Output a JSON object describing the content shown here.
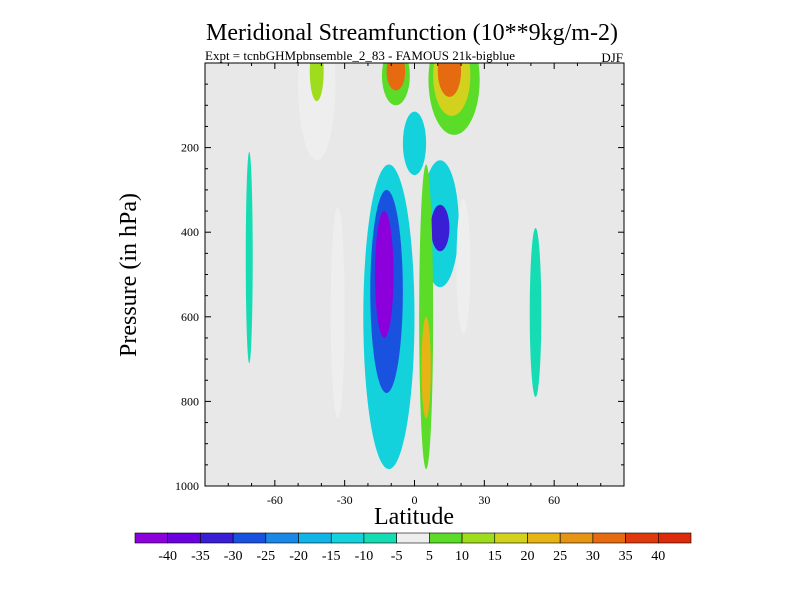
{
  "chart_data": {
    "type": "heatmap",
    "title": "Meridional Streamfunction (10**9kg/m-2)",
    "subtitle": "Expt = tcnbGHMpbnsemble_2_83 - FAMOUS 21k-bigblue",
    "season": "DJF",
    "xlabel": "Latitude",
    "ylabel": "Pressure (in hPa)",
    "xlim": [
      -90,
      90
    ],
    "ylim": [
      0,
      1000
    ],
    "y_inverted": true,
    "x_ticks": [
      -60,
      -30,
      0,
      30,
      60
    ],
    "x_tick_labels": [
      "-60",
      "-30",
      "0",
      "30",
      "60"
    ],
    "y_ticks": [
      200,
      400,
      600,
      800,
      1000
    ],
    "y_tick_labels": [
      "200",
      "400",
      "600",
      "800",
      "1000"
    ],
    "background_color": "#e8e8e8",
    "colorbar": {
      "labels": [
        "-40",
        "-35",
        "-30",
        "-25",
        "-20",
        "-15",
        "-10",
        "-5",
        "5",
        "10",
        "15",
        "20",
        "25",
        "30",
        "35",
        "40"
      ],
      "colors": [
        "#8c00dc",
        "#6a00e0",
        "#3a1ed6",
        "#1a52e0",
        "#1a88e6",
        "#10b4e6",
        "#14d2dc",
        "#16dcb4",
        "#eeeeee",
        "#5adc28",
        "#a0dc1e",
        "#d2d21e",
        "#e6b414",
        "#e69414",
        "#e66a10",
        "#e03a0c",
        "#dc2a0a"
      ]
    },
    "cells": [
      {
        "name": "nh-polar-cell-outer",
        "center_lat": 17,
        "center_p": 40,
        "half_lat": 11,
        "half_p": 130,
        "value": 10
      },
      {
        "name": "nh-polar-cell-mid",
        "center_lat": 16,
        "center_p": 30,
        "half_lat": 8,
        "half_p": 95,
        "value": 20
      },
      {
        "name": "nh-polar-cell-core",
        "center_lat": 15,
        "center_p": 20,
        "half_lat": 5,
        "half_p": 60,
        "value": 35
      },
      {
        "name": "sh-strat-cell-outer",
        "center_lat": -8,
        "center_p": 30,
        "half_lat": 6,
        "half_p": 70,
        "value": 10
      },
      {
        "name": "sh-strat-cell-core",
        "center_lat": -8,
        "center_p": 20,
        "half_lat": 4,
        "half_p": 45,
        "value": 35
      },
      {
        "name": "sh-upper-cell-outer",
        "center_lat": -42,
        "center_p": 50,
        "half_lat": 8,
        "half_p": 180,
        "value": 5
      },
      {
        "name": "sh-upper-cell-core",
        "center_lat": -42,
        "center_p": 20,
        "half_lat": 3,
        "half_p": 70,
        "value": 15
      },
      {
        "name": "hadley-sh-outer",
        "center_lat": -11,
        "center_p": 600,
        "half_lat": 11,
        "half_p": 360,
        "value": -10
      },
      {
        "name": "hadley-sh-mid",
        "center_lat": -12,
        "center_p": 540,
        "half_lat": 7,
        "half_p": 240,
        "value": -25
      },
      {
        "name": "hadley-sh-core",
        "center_lat": -13,
        "center_p": 500,
        "half_lat": 4,
        "half_p": 150,
        "value": -40
      },
      {
        "name": "hadley-upper-branch",
        "center_lat": 0,
        "center_p": 190,
        "half_lat": 5,
        "half_p": 75,
        "value": -10
      },
      {
        "name": "nh-ferrel-outer",
        "center_lat": 11,
        "center_p": 380,
        "half_lat": 8,
        "half_p": 150,
        "value": -10
      },
      {
        "name": "nh-ferrel-core",
        "center_lat": 11,
        "center_p": 390,
        "half_lat": 4,
        "half_p": 55,
        "value": -30
      },
      {
        "name": "eq-positive-column",
        "center_lat": 5,
        "center_p": 600,
        "half_lat": 3,
        "half_p": 360,
        "value": 10
      },
      {
        "name": "eq-positive-core",
        "center_lat": 5,
        "center_p": 720,
        "half_lat": 2,
        "half_p": 120,
        "value": 25
      },
      {
        "name": "sh-ferrel-cell",
        "center_lat": -33,
        "center_p": 590,
        "half_lat": 3,
        "half_p": 250,
        "value": 5
      },
      {
        "name": "nh-midlat-cell",
        "center_lat": 21,
        "center_p": 480,
        "half_lat": 3,
        "half_p": 160,
        "value": 5
      },
      {
        "name": "sh-polar-cell",
        "center_lat": -71,
        "center_p": 460,
        "half_lat": 1.5,
        "half_p": 250,
        "value": -5
      },
      {
        "name": "nh-polar-lower-cell",
        "center_lat": 52,
        "center_p": 590,
        "half_lat": 2.5,
        "half_p": 200,
        "value": -5
      }
    ]
  }
}
